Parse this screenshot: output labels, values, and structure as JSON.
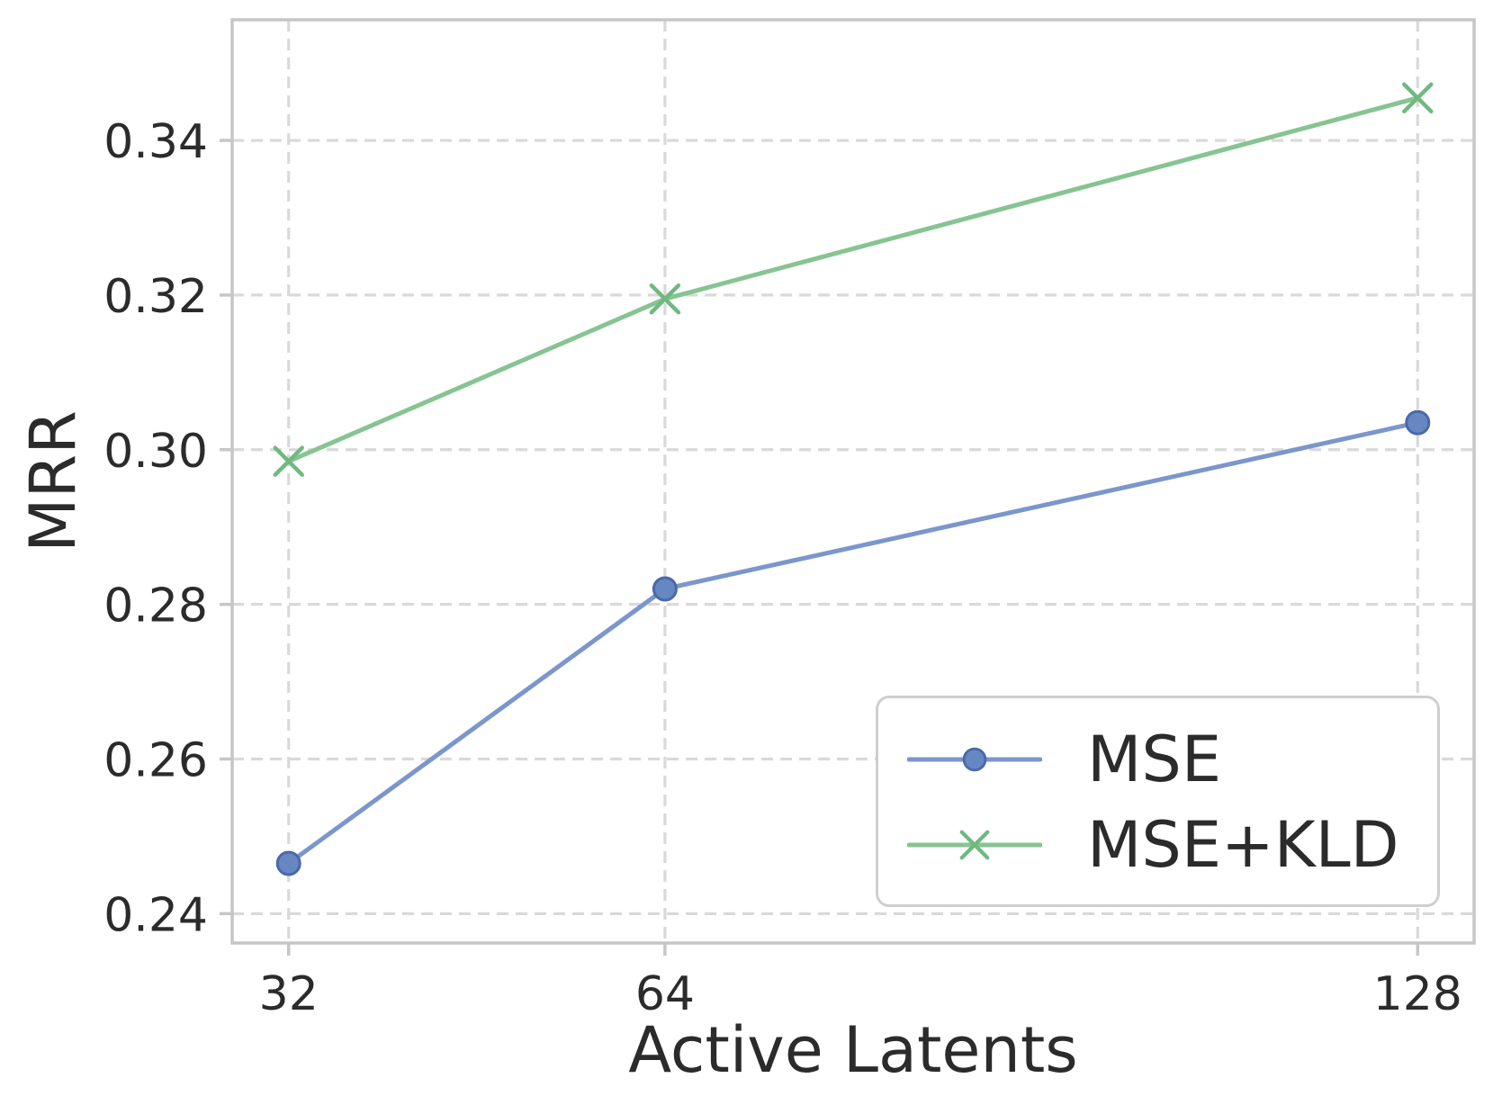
{
  "chart_data": {
    "type": "line",
    "title": "",
    "xlabel": "Active Latents",
    "ylabel": "MRR",
    "x": [
      32,
      64,
      128
    ],
    "x_tick_labels": [
      "32",
      "64",
      "128"
    ],
    "y_ticks": [
      0.24,
      0.26,
      0.28,
      0.3,
      0.32,
      0.34
    ],
    "y_tick_labels": [
      "0.24",
      "0.26",
      "0.28",
      "0.30",
      "0.32",
      "0.34"
    ],
    "xlim": [
      27.2,
      132.8
    ],
    "ylim": [
      0.2362,
      0.3556
    ],
    "grid": "dashed, both axes",
    "legend_position": "lower right inside",
    "series": [
      {
        "name": "MSE",
        "marker": "circle",
        "line_color": "#7b96cc",
        "marker_fill": "#6787c2",
        "marker_edge": "#4a69a8",
        "values": [
          0.2465,
          0.282,
          0.3035
        ]
      },
      {
        "name": "MSE+KLD",
        "marker": "x",
        "line_color": "#86c492",
        "marker_color": "#6fb980",
        "values": [
          0.2985,
          0.3195,
          0.3455
        ]
      }
    ],
    "style": {
      "grid_color": "#d9d9d9",
      "spine_color": "#c6c6c6",
      "tick_color": "#c6c6c6",
      "text_color": "#2b2b2b",
      "background": "#ffffff"
    }
  }
}
